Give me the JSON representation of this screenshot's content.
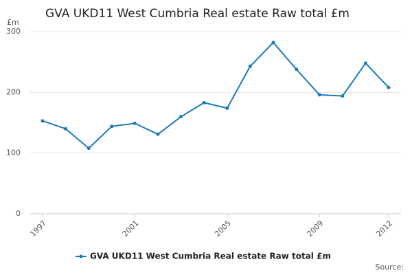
{
  "chart_data": {
    "type": "line",
    "title": "GVA UKD11 West Cumbria Real estate Raw total £m",
    "y_unit": "£m",
    "source": "Source:",
    "x": [
      1997,
      1998,
      1999,
      2000,
      2001,
      2002,
      2003,
      2004,
      2005,
      2006,
      2007,
      2008,
      2009,
      2010,
      2011,
      2012
    ],
    "series": [
      {
        "name": "GVA UKD11 West Cumbria Real estate Raw total £m",
        "color": "#1a7ab5",
        "values": [
          153,
          140,
          108,
          144,
          149,
          131,
          160,
          183,
          174,
          243,
          282,
          238,
          196,
          194,
          248,
          208
        ]
      }
    ],
    "xlim": [
      1997,
      2012
    ],
    "xticks": [
      1997,
      2001,
      2005,
      2009,
      2012
    ],
    "ylim": [
      0,
      300
    ],
    "yticks": [
      0,
      100,
      200,
      300
    ],
    "grid": true
  }
}
